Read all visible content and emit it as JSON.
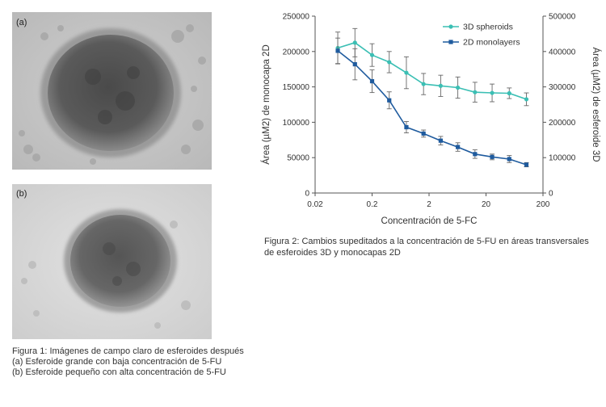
{
  "figure1": {
    "panel_a_label": "(a)",
    "panel_b_label": "(b)",
    "caption": [
      "Figura 1: Imágenes de campo claro de esferoides después",
      "(a) Esferoide grande con baja concentración de 5-FU",
      "(b) Esferoide pequeño con alta concentración de 5-FU"
    ]
  },
  "figure2": {
    "caption": [
      "Figura 2: Cambios supeditados a la concentración de 5-FU en áreas transversales",
      "de esferoides 3D y monocapas 2D"
    ]
  },
  "colors": {
    "spheroids": "#3bbfb4",
    "monolayers": "#1f5b9e",
    "axis": "#555555"
  },
  "chart_data": {
    "type": "line",
    "xlabel": "Concentración de 5-FC",
    "ylabel_left": "Área (µM2) de monocapa 2D",
    "ylabel_right": "Área (µM2) de esferoide 3D",
    "x_scale": "log",
    "xlim": [
      0.02,
      200
    ],
    "x_ticks": [
      0.02,
      0.2,
      2,
      20,
      200
    ],
    "x_tick_labels": [
      "0.02",
      "0.2",
      "2",
      "20",
      "200"
    ],
    "ylim_left": [
      0,
      250000
    ],
    "y_ticks_left": [
      0,
      50000,
      100000,
      150000,
      200000,
      250000
    ],
    "y_tick_labels_left": [
      "0",
      "50000",
      "100000",
      "150000",
      "200000",
      "250000"
    ],
    "ylim_right": [
      0,
      500000
    ],
    "y_ticks_right": [
      0,
      100000,
      200000,
      300000,
      400000,
      500000
    ],
    "y_tick_labels_right": [
      "0",
      "100000",
      "200000",
      "300000",
      "400000",
      "500000"
    ],
    "legend_position": "top-right",
    "x": [
      0.05,
      0.1,
      0.2,
      0.4,
      0.8,
      1.6,
      3.2,
      6.4,
      12.8,
      25.6,
      51.2,
      102.4
    ],
    "series": [
      {
        "name": "3D spheroids",
        "axis": "right",
        "color_key": "spheroids",
        "marker": "circle",
        "values": [
          410000,
          425000,
          390000,
          370000,
          340000,
          308000,
          303000,
          298000,
          285000,
          283000,
          282000,
          265000
        ],
        "errors": [
          45000,
          40000,
          32000,
          30000,
          45000,
          30000,
          30000,
          30000,
          28000,
          25000,
          15000,
          18000
        ]
      },
      {
        "name": "2D monolayers",
        "axis": "left",
        "color_key": "monolayers",
        "marker": "square",
        "values": [
          201000,
          182000,
          158000,
          131000,
          93000,
          84000,
          74000,
          65000,
          55000,
          51000,
          48000,
          40000
        ],
        "errors": [
          18000,
          22000,
          16000,
          12000,
          8000,
          5000,
          6000,
          6000,
          6000,
          4000,
          5000,
          3000
        ]
      }
    ]
  }
}
